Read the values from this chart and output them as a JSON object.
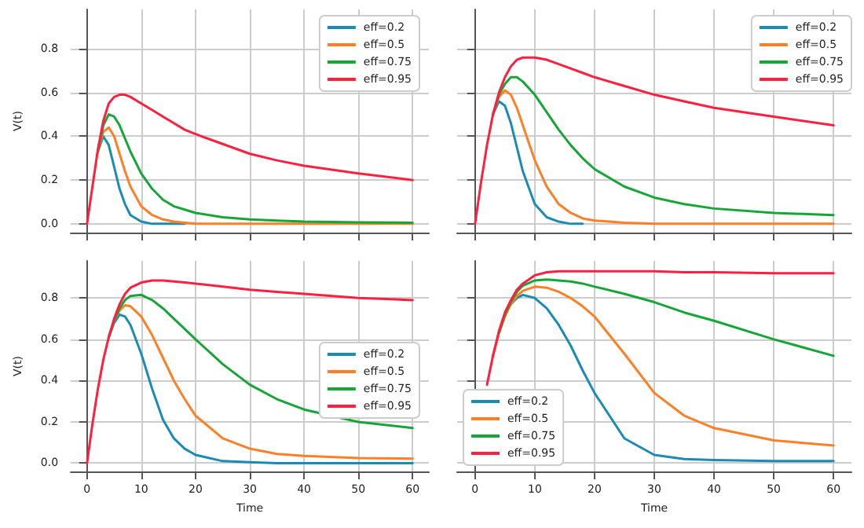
{
  "chart_data": [
    {
      "type": "line",
      "ylabel": "V(t)",
      "x": [
        0,
        1,
        2,
        3,
        4,
        5,
        6,
        7,
        8,
        10,
        12,
        14,
        16,
        18,
        20,
        25,
        30,
        35,
        40,
        50,
        60
      ],
      "xlim": [
        -3,
        63
      ],
      "ylim": [
        -0.04,
        0.98
      ],
      "xticks": [
        0,
        10,
        20,
        30,
        40,
        50,
        60
      ],
      "yticks": [
        {
          "value": 0,
          "label": "0.0"
        },
        0.2,
        0.4,
        0.6,
        0.8
      ],
      "grid": true,
      "legend": "top right",
      "tick_labels": "y",
      "series": [
        {
          "name": "eff=0.2",
          "color": "#1a8cb3",
          "values": [
            null,
            null,
            0.33,
            0.4,
            0.36,
            0.26,
            0.16,
            0.09,
            0.04,
            0.01,
            0,
            0,
            0,
            0,
            null,
            null,
            null,
            null,
            null,
            null,
            null
          ]
        },
        {
          "name": "eff=0.5",
          "color": "#ff7f27",
          "values": [
            null,
            null,
            0.33,
            0.42,
            0.44,
            0.4,
            0.32,
            0.24,
            0.17,
            0.08,
            0.04,
            0.02,
            0.01,
            0.005,
            0,
            0,
            0,
            0,
            0,
            0,
            0
          ]
        },
        {
          "name": "eff=0.75",
          "color": "#16a637",
          "values": [
            null,
            null,
            0.33,
            0.45,
            0.5,
            0.49,
            0.45,
            0.39,
            0.33,
            0.23,
            0.16,
            0.11,
            0.08,
            0.065,
            0.05,
            0.03,
            0.02,
            0.015,
            0.01,
            0.007,
            0.005
          ]
        },
        {
          "name": "eff=0.95",
          "color": "#ff2040",
          "values": [
            0,
            0.17,
            0.34,
            0.47,
            0.55,
            0.58,
            0.59,
            0.59,
            0.58,
            0.55,
            0.52,
            0.49,
            0.46,
            0.43,
            0.41,
            0.365,
            0.32,
            0.29,
            0.265,
            0.23,
            0.2
          ]
        }
      ]
    },
    {
      "type": "line",
      "x": [
        0,
        1,
        2,
        3,
        4,
        5,
        6,
        7,
        8,
        10,
        12,
        14,
        16,
        18,
        20,
        25,
        30,
        35,
        40,
        50,
        60
      ],
      "xlim": [
        -3,
        63
      ],
      "ylim": [
        -0.04,
        0.98
      ],
      "xticks": [
        0,
        10,
        20,
        30,
        40,
        50,
        60
      ],
      "yticks": [
        {
          "value": 0,
          "label": null
        },
        {
          "value": 0.2,
          "label": null
        },
        {
          "value": 0.4,
          "label": null
        },
        {
          "value": 0.6,
          "label": null
        },
        {
          "value": 0.8,
          "label": null
        }
      ],
      "grid": true,
      "legend": "top right",
      "tick_labels": false,
      "series": [
        {
          "name": "eff=0.2",
          "color": "#1a8cb3",
          "values": [
            null,
            null,
            null,
            0.5,
            0.56,
            0.54,
            0.46,
            0.35,
            0.24,
            0.09,
            0.03,
            0.01,
            0,
            0,
            null,
            null,
            null,
            null,
            null,
            null,
            null
          ]
        },
        {
          "name": "eff=0.5",
          "color": "#ff7f27",
          "values": [
            null,
            null,
            null,
            0.5,
            0.58,
            0.61,
            0.59,
            0.53,
            0.45,
            0.29,
            0.17,
            0.09,
            0.05,
            0.025,
            0.015,
            0.005,
            0,
            0,
            0,
            0,
            0
          ]
        },
        {
          "name": "eff=0.75",
          "color": "#16a637",
          "values": [
            null,
            null,
            null,
            0.5,
            0.59,
            0.64,
            0.67,
            0.67,
            0.65,
            0.59,
            0.51,
            0.43,
            0.36,
            0.3,
            0.25,
            0.17,
            0.12,
            0.09,
            0.07,
            0.05,
            0.04
          ]
        },
        {
          "name": "eff=0.95",
          "color": "#ff2040",
          "values": [
            0,
            0.19,
            0.36,
            0.5,
            0.6,
            0.67,
            0.72,
            0.75,
            0.76,
            0.76,
            0.75,
            0.73,
            0.71,
            0.69,
            0.67,
            0.63,
            0.59,
            0.56,
            0.53,
            0.49,
            0.45
          ]
        }
      ]
    },
    {
      "type": "line",
      "xlabel": "Time",
      "ylabel": "V(t)",
      "x": [
        0,
        1,
        2,
        3,
        4,
        5,
        6,
        7,
        8,
        10,
        12,
        14,
        16,
        18,
        20,
        25,
        30,
        35,
        40,
        50,
        60
      ],
      "xlim": [
        -3,
        63
      ],
      "ylim": [
        -0.04,
        0.98
      ],
      "xticks": [
        0,
        10,
        20,
        30,
        40,
        50,
        60
      ],
      "yticks": [
        {
          "value": 0,
          "label": "0.0"
        },
        0.2,
        0.4,
        0.6,
        0.8
      ],
      "grid": true,
      "legend": "right",
      "series": [
        {
          "name": "eff=0.2",
          "color": "#1a8cb3",
          "values": [
            null,
            null,
            null,
            null,
            0.61,
            0.68,
            0.72,
            0.71,
            0.67,
            0.53,
            0.36,
            0.21,
            0.12,
            0.07,
            0.04,
            0.01,
            0.005,
            0,
            0,
            0,
            0
          ]
        },
        {
          "name": "eff=0.5",
          "color": "#ff7f27",
          "values": [
            null,
            null,
            null,
            null,
            0.61,
            0.69,
            0.74,
            0.765,
            0.76,
            0.71,
            0.62,
            0.51,
            0.4,
            0.31,
            0.23,
            0.12,
            0.07,
            0.045,
            0.035,
            0.025,
            0.022
          ]
        },
        {
          "name": "eff=0.75",
          "color": "#16a637",
          "values": [
            null,
            null,
            null,
            null,
            0.61,
            0.69,
            0.75,
            0.79,
            0.81,
            0.815,
            0.79,
            0.75,
            0.7,
            0.65,
            0.6,
            0.48,
            0.38,
            0.31,
            0.26,
            0.2,
            0.17
          ]
        },
        {
          "name": "eff=0.95",
          "color": "#ff2040",
          "values": [
            0,
            0.19,
            0.36,
            0.5,
            0.61,
            0.7,
            0.77,
            0.82,
            0.85,
            0.875,
            0.885,
            0.885,
            0.88,
            0.875,
            0.87,
            0.855,
            0.84,
            0.83,
            0.82,
            0.8,
            0.79
          ]
        }
      ]
    },
    {
      "type": "line",
      "xlabel": "Time",
      "x": [
        2,
        3,
        4,
        5,
        6,
        7,
        8,
        10,
        12,
        14,
        16,
        18,
        20,
        25,
        30,
        35,
        40,
        50,
        60
      ],
      "xlim": [
        -3,
        63
      ],
      "ylim": [
        -0.04,
        0.98
      ],
      "xticks": [
        0,
        10,
        20,
        30,
        40,
        50,
        60
      ],
      "yticks": [
        {
          "value": 0,
          "label": null
        },
        {
          "value": 0.2,
          "label": null
        },
        {
          "value": 0.4,
          "label": null
        },
        {
          "value": 0.6,
          "label": null
        },
        {
          "value": 0.8,
          "label": null
        }
      ],
      "grid": true,
      "legend": "bottom left",
      "tick_labels": "x",
      "series": [
        {
          "name": "eff=0.2",
          "color": "#1a8cb3",
          "values": [
            null,
            null,
            null,
            null,
            0.77,
            0.8,
            0.815,
            0.8,
            0.75,
            0.67,
            0.57,
            0.45,
            0.34,
            0.12,
            0.04,
            0.02,
            0.015,
            0.01,
            0.01
          ]
        },
        {
          "name": "eff=0.5",
          "color": "#ff7f27",
          "values": [
            null,
            0.52,
            0.63,
            0.71,
            0.77,
            0.81,
            0.835,
            0.855,
            0.85,
            0.83,
            0.8,
            0.76,
            0.71,
            0.53,
            0.34,
            0.23,
            0.17,
            0.11,
            0.086
          ]
        },
        {
          "name": "eff=0.75",
          "color": "#16a637",
          "values": [
            null,
            null,
            0.63,
            0.72,
            0.78,
            0.83,
            0.86,
            0.885,
            0.89,
            0.885,
            0.88,
            0.87,
            0.855,
            0.82,
            0.78,
            0.73,
            0.69,
            0.6,
            0.52
          ]
        },
        {
          "name": "eff=0.95",
          "color": "#ff2040",
          "values": [
            0.38,
            0.52,
            0.64,
            0.73,
            0.79,
            0.84,
            0.87,
            0.91,
            0.925,
            0.93,
            0.93,
            0.93,
            0.93,
            0.93,
            0.93,
            0.925,
            0.925,
            0.92,
            0.92
          ]
        }
      ]
    }
  ]
}
